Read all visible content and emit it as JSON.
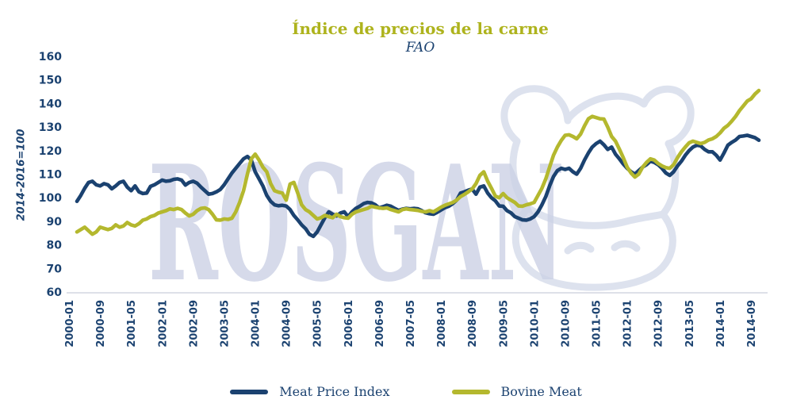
{
  "title": "Índice de precios de la carne",
  "subtitle": "FAO",
  "watermark": "ROSGAN",
  "y_axis_label": "2014-2016=100",
  "colors": {
    "meat_price_index": "#1b4270",
    "bovine_meat": "#b4b82e",
    "title": "#aeb31d",
    "axis_text": "#1b4270",
    "axis_line": "#c9cdd9",
    "watermark": "#d6daea",
    "cattle_outline": "#ccd3e6",
    "background": "#ffffff"
  },
  "legend": [
    {
      "label": "Meat Price Index",
      "color": "#1b4270"
    },
    {
      "label": "Bovine Meat",
      "color": "#b4b82e"
    }
  ],
  "chart_data": {
    "type": "line",
    "title": "Índice de precios de la carne",
    "subtitle": "FAO",
    "ylabel": "2014-2016=100",
    "ylim": [
      60,
      160
    ],
    "grid": false,
    "legend_position": "bottom",
    "y_ticks": [
      60,
      70,
      80,
      90,
      100,
      110,
      120,
      130,
      140,
      150,
      160
    ],
    "x_interval": "monthly",
    "x_start": "2000-01",
    "x_end": "2014-09",
    "x_tick_every_months": 8,
    "x_tick_labels": [
      "2000-01",
      "2000-09",
      "2001-05",
      "2002-01",
      "2002-09",
      "2003-05",
      "2004-01",
      "2004-09",
      "2005-05",
      "2006-01",
      "2006-09",
      "2007-05",
      "2008-01",
      "2008-09",
      "2009-05",
      "2010-01",
      "2010-09",
      "2011-05",
      "2012-01",
      "2012-09",
      "2013-05",
      "2014-01",
      "2014-09"
    ],
    "series": [
      {
        "name": "Meat Price Index",
        "color": "#1b4270",
        "values": [
          98.5,
          101,
          104,
          106.5,
          107,
          105.5,
          105,
          106,
          105.5,
          103.8,
          105,
          106.5,
          107,
          104.5,
          103,
          105,
          102.5,
          101.8,
          102,
          104.8,
          105.5,
          106.5,
          107.5,
          107,
          107.2,
          107.8,
          108,
          107.5,
          105.4,
          106.5,
          107,
          106.2,
          104.5,
          103,
          101.5,
          101.8,
          102.5,
          103.5,
          105.5,
          108,
          110.5,
          112.5,
          114.5,
          116.5,
          117.5,
          116,
          111,
          108,
          105,
          101,
          98.5,
          97,
          96.6,
          96.8,
          96.5,
          95,
          92.5,
          90.6,
          88.5,
          86.9,
          84.5,
          83.6,
          85.5,
          88.5,
          91.5,
          94,
          93,
          92.3,
          93.5,
          94,
          92,
          94,
          95.5,
          96.4,
          97.5,
          98,
          97.8,
          97,
          95.7,
          96.2,
          96.8,
          96.4,
          95.5,
          94.6,
          95.2,
          95.5,
          95.3,
          95.5,
          95.3,
          94.5,
          93.6,
          93.2,
          93,
          93.8,
          94.8,
          95.8,
          96.4,
          97.5,
          99,
          102,
          102.5,
          103.2,
          103.7,
          101.5,
          104.5,
          105,
          102,
          100,
          98.7,
          96.5,
          96.4,
          94.5,
          93.6,
          92,
          91.3,
          90.6,
          90.5,
          91,
          92,
          94,
          97,
          100.5,
          105,
          109,
          111.5,
          112.5,
          112,
          112.5,
          111,
          110,
          112.5,
          116,
          119,
          121.5,
          123,
          124,
          122.5,
          120.5,
          121.5,
          118.5,
          116.5,
          114.3,
          112.5,
          111,
          110,
          111.5,
          113,
          114,
          115.5,
          115,
          114,
          112.5,
          110.5,
          109.5,
          111,
          113.5,
          115.5,
          118,
          120,
          121.5,
          122.3,
          122,
          120.5,
          119.5,
          119.5,
          118,
          116,
          119,
          122.3,
          123.5,
          124.5,
          126,
          126.2,
          126.5,
          126,
          125.5,
          124.4
        ]
      },
      {
        "name": "Bovine Meat",
        "color": "#b4b82e",
        "values": [
          85.5,
          86.5,
          87.5,
          86,
          84.5,
          85.5,
          87.5,
          87,
          86.5,
          87,
          88.5,
          87.5,
          88,
          89.5,
          88.5,
          88,
          89,
          90.5,
          91,
          92,
          92.5,
          93.5,
          94,
          94.5,
          95.3,
          95,
          95.5,
          95,
          93.5,
          92.3,
          93,
          94.5,
          95.5,
          95.7,
          95,
          93,
          90.6,
          90.5,
          91,
          90.8,
          91.3,
          94,
          98,
          103,
          110,
          116.5,
          118.5,
          116,
          113,
          111,
          106,
          103,
          102.4,
          102,
          99,
          105.8,
          106.5,
          102,
          97,
          95,
          94,
          92.5,
          91,
          91.5,
          92.5,
          92,
          91.5,
          93,
          92,
          91.5,
          91.3,
          93,
          94,
          94.5,
          95,
          95.5,
          96.4,
          96,
          95.7,
          95.5,
          95.7,
          95,
          94.5,
          94,
          95,
          95.3,
          95,
          94.8,
          94.6,
          94.2,
          94,
          94.5,
          94,
          95,
          96,
          96.8,
          97.4,
          98,
          99,
          100.5,
          101.4,
          102.5,
          103.7,
          106,
          109.5,
          111,
          107,
          104,
          100.7,
          100,
          101.8,
          100,
          99,
          98,
          96.5,
          96.4,
          97,
          97.4,
          98,
          101,
          104,
          108,
          113,
          118,
          121.5,
          124.3,
          126.5,
          126.7,
          126,
          125,
          127,
          130.5,
          133.5,
          134.5,
          134,
          133.5,
          133.4,
          130,
          126,
          124,
          120.6,
          117,
          113,
          110.5,
          108.8,
          110,
          113,
          115,
          116.5,
          116,
          114.5,
          113.5,
          112.8,
          112.5,
          114,
          117,
          119.5,
          121.5,
          123.3,
          124,
          123.5,
          123,
          123.5,
          124.5,
          125,
          126,
          127.5,
          129.5,
          130.7,
          132.5,
          134.5,
          137,
          139,
          141,
          142,
          144,
          145.5
        ]
      }
    ]
  }
}
